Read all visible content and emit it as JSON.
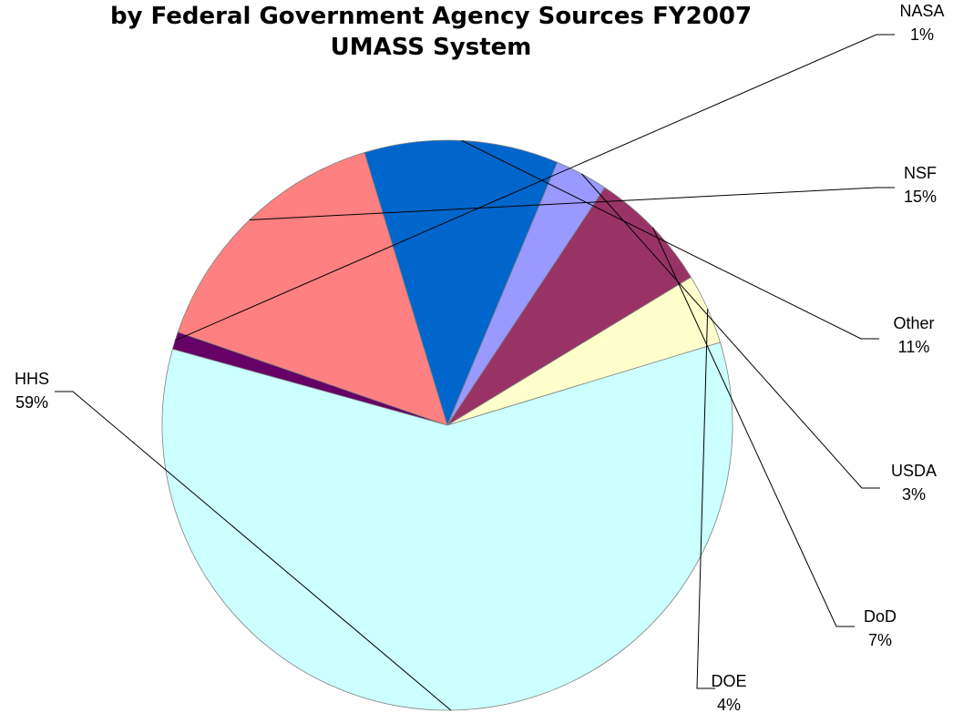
{
  "chart_data": {
    "type": "pie",
    "title_lines": [
      "by Federal Government Agency Sources FY2007",
      "UMASS System"
    ],
    "slices": [
      {
        "label": "NASA",
        "value": 1,
        "value_label": "1%",
        "color": "#660066"
      },
      {
        "label": "NSF",
        "value": 15,
        "value_label": "15%",
        "color": "#ff8080"
      },
      {
        "label": "Other",
        "value": 11,
        "value_label": "11%",
        "color": "#0066cc"
      },
      {
        "label": "USDA",
        "value": 3,
        "value_label": "3%",
        "color": "#9999ff"
      },
      {
        "label": "DoD",
        "value": 7,
        "value_label": "7%",
        "color": "#993366"
      },
      {
        "label": "DOE",
        "value": 4,
        "value_label": "4%",
        "color": "#ffffcc"
      },
      {
        "label": "HHS",
        "value": 59,
        "value_label": "59%",
        "color": "#ccffff"
      }
    ]
  }
}
